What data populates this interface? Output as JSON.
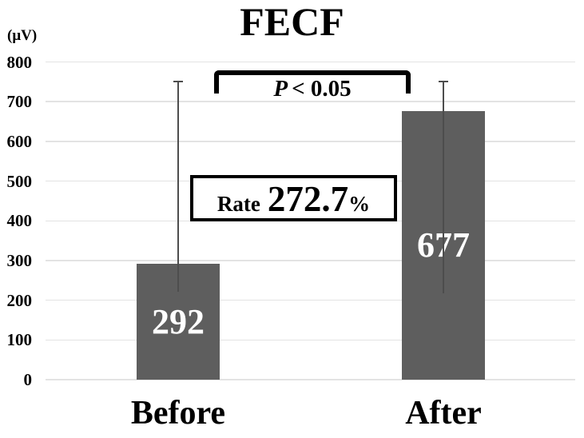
{
  "chart_data": {
    "type": "bar",
    "title": "FECF",
    "y_axis_unit": "(μV)",
    "xlabel": "",
    "ylabel": "",
    "ylim": [
      0,
      800
    ],
    "y_ticks": [
      0,
      100,
      200,
      300,
      400,
      500,
      600,
      700,
      800
    ],
    "grid": true,
    "legend": "none",
    "categories": [
      "Before",
      "After"
    ],
    "values": [
      292,
      677
    ],
    "bar_value_labels": [
      "292",
      "677"
    ],
    "error_bars": [
      {
        "category": "Before",
        "whisker_top": 750,
        "whisker_bottom": 222
      },
      {
        "category": "After",
        "whisker_top": 750,
        "whisker_bottom": 217
      }
    ],
    "annotations": {
      "significance_text": "P < 0.05",
      "p_symbol": "P",
      "p_rest": "< 0.05",
      "rate_label": "Rate",
      "rate_value": "272.7",
      "rate_unit": "%"
    },
    "colors": {
      "background": "#ffffff",
      "bar_fill": "#5e5e5e",
      "bar_value_text": "#ffffff",
      "gridline": "#e3e3e3",
      "error_bar": "#4d4d4d",
      "annotation_border": "#000000",
      "text": "#000000"
    }
  }
}
